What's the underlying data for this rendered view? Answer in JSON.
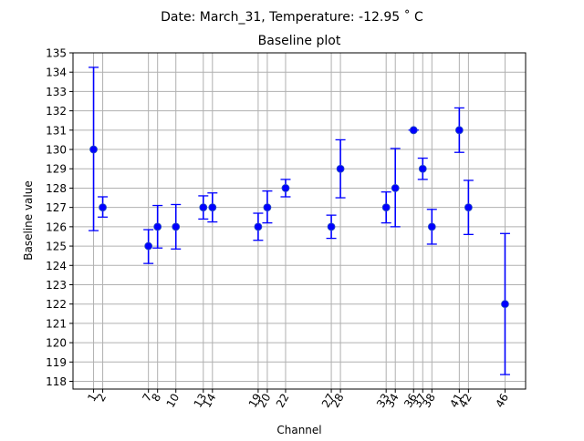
{
  "suptitle": "Date: March_31, Temperature: -12.95 ˚ C",
  "chart_data": {
    "type": "scatter",
    "title": "Baseline plot",
    "xlabel": "Channel",
    "ylabel": "Baseline value",
    "grid": true,
    "xlim": [
      -1.25,
      48.25
    ],
    "ylim": [
      117.6,
      135.0
    ],
    "yticks": [
      118,
      119,
      120,
      121,
      122,
      123,
      124,
      125,
      126,
      127,
      128,
      129,
      130,
      131,
      132,
      133,
      134,
      135
    ],
    "series": [
      {
        "color": "#0000ff",
        "x": [
          1,
          2,
          7,
          8,
          10,
          13,
          14,
          19,
          20,
          22,
          27,
          28,
          33,
          34,
          36,
          37,
          38,
          41,
          42,
          46
        ],
        "xtick_labels": [
          "1",
          "2",
          "7",
          "8",
          "10",
          "13",
          "14",
          "19",
          "20",
          "22",
          "27",
          "28",
          "33",
          "34",
          "36",
          "37",
          "38",
          "41",
          "42",
          "46"
        ],
        "y": [
          130,
          127,
          125,
          126,
          126,
          127,
          127,
          126,
          127,
          128,
          126,
          129,
          127,
          128,
          131,
          129,
          126,
          131,
          127,
          122
        ],
        "err_low": [
          125.8,
          126.5,
          124.1,
          124.9,
          124.85,
          126.4,
          126.25,
          125.3,
          126.2,
          127.55,
          125.4,
          127.5,
          126.2,
          126.0,
          131,
          128.45,
          125.1,
          129.85,
          125.6,
          118.35
        ],
        "err_high": [
          134.25,
          127.55,
          125.85,
          127.1,
          127.15,
          127.6,
          127.75,
          126.7,
          127.85,
          128.45,
          126.6,
          130.5,
          127.8,
          130.05,
          131,
          129.55,
          126.9,
          132.15,
          128.4,
          125.65
        ]
      }
    ]
  }
}
